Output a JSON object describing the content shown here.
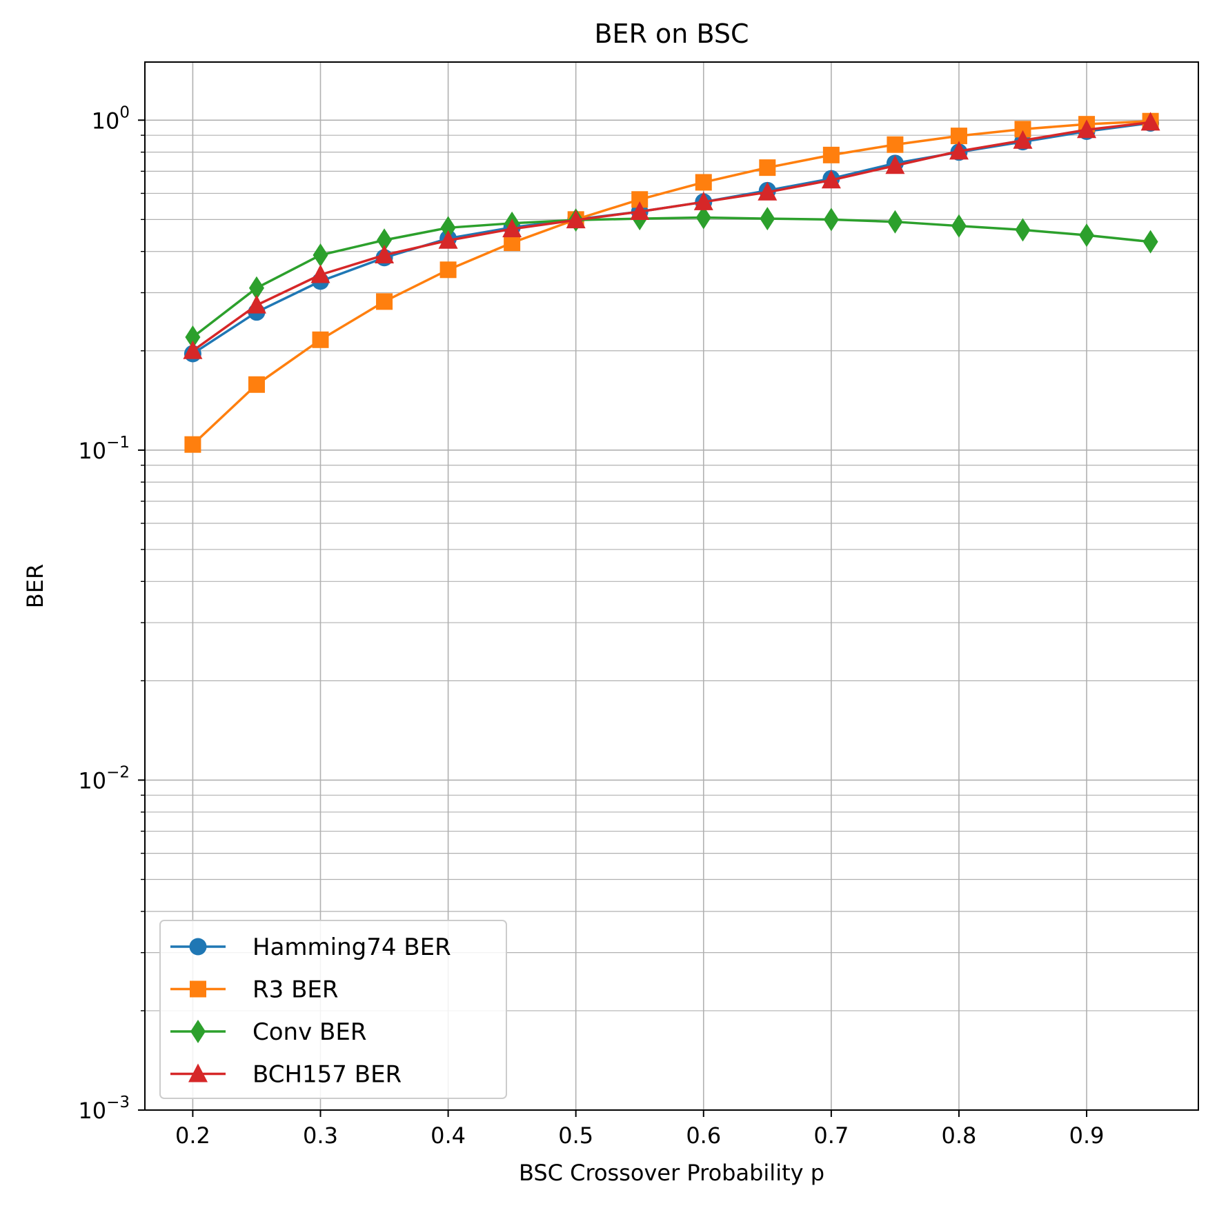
{
  "chart_data": {
    "type": "line",
    "title": "BER on BSC",
    "xlabel": "BSC Crossover Probability p",
    "ylabel": "BER",
    "x": [
      0.2,
      0.25,
      0.3,
      0.35,
      0.4,
      0.45,
      0.5,
      0.55,
      0.6,
      0.65,
      0.7,
      0.75,
      0.8,
      0.85,
      0.9,
      0.95
    ],
    "xlim": [
      0.1625,
      0.9875
    ],
    "ylim": [
      0.001,
      1.5
    ],
    "yscale": "log",
    "grid": true,
    "grid_minor": true,
    "legend_position": "lower-left",
    "xticks": [
      "0.2",
      "0.3",
      "0.4",
      "0.5",
      "0.6",
      "0.7",
      "0.8",
      "0.9"
    ],
    "yticks": [
      {
        "value": 1,
        "base": "10",
        "exp": "0"
      },
      {
        "value": 0.1,
        "base": "10",
        "exp": "−1"
      },
      {
        "value": 0.01,
        "base": "10",
        "exp": "−2"
      },
      {
        "value": 0.001,
        "base": "10",
        "exp": "−3"
      }
    ],
    "series": [
      {
        "name": "Hamming74 BER",
        "color": "#1f77b4",
        "marker": "circle",
        "values": [
          0.196,
          0.262,
          0.325,
          0.383,
          0.438,
          0.473,
          0.5,
          0.528,
          0.565,
          0.612,
          0.665,
          0.74,
          0.8,
          0.86,
          0.925,
          0.98
        ]
      },
      {
        "name": "R3 BER",
        "color": "#ff7f0e",
        "marker": "square",
        "values": [
          0.104,
          0.158,
          0.216,
          0.282,
          0.352,
          0.425,
          0.5,
          0.575,
          0.648,
          0.718,
          0.784,
          0.843,
          0.896,
          0.939,
          0.972,
          0.993
        ]
      },
      {
        "name": "Conv BER",
        "color": "#2ca02c",
        "marker": "diamond",
        "values": [
          0.22,
          0.31,
          0.39,
          0.433,
          0.472,
          0.487,
          0.498,
          0.503,
          0.507,
          0.503,
          0.5,
          0.492,
          0.478,
          0.465,
          0.448,
          0.428
        ]
      },
      {
        "name": "BCH157 BER",
        "color": "#d62728",
        "marker": "triangle",
        "values": [
          0.2,
          0.275,
          0.34,
          0.39,
          0.432,
          0.468,
          0.498,
          0.528,
          0.565,
          0.605,
          0.658,
          0.728,
          0.805,
          0.868,
          0.935,
          0.985
        ]
      }
    ]
  }
}
